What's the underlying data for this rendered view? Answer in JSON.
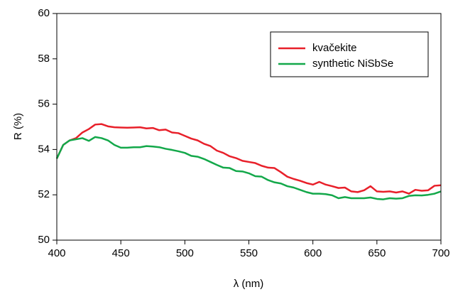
{
  "chart_data": {
    "type": "line",
    "x_label": "λ (nm)",
    "y_label": "R (%)",
    "x": [
      400,
      405,
      410,
      415,
      420,
      425,
      430,
      435,
      440,
      445,
      450,
      455,
      460,
      465,
      470,
      475,
      480,
      485,
      490,
      495,
      500,
      505,
      510,
      515,
      520,
      525,
      530,
      535,
      540,
      545,
      550,
      555,
      560,
      565,
      570,
      575,
      580,
      585,
      590,
      595,
      600,
      605,
      610,
      615,
      620,
      625,
      630,
      635,
      640,
      645,
      650,
      655,
      660,
      665,
      670,
      675,
      680,
      685,
      690,
      695,
      700
    ],
    "series": [
      {
        "name": "kvačekite",
        "color": "#e8202a",
        "values": [
          53.6,
          54.2,
          54.4,
          54.5,
          54.75,
          54.9,
          55.1,
          55.12,
          55.02,
          54.98,
          54.97,
          54.96,
          54.97,
          54.98,
          54.93,
          54.95,
          54.85,
          54.88,
          54.75,
          54.72,
          54.6,
          54.48,
          54.4,
          54.25,
          54.15,
          53.95,
          53.85,
          53.7,
          53.62,
          53.5,
          53.45,
          53.4,
          53.28,
          53.2,
          53.18,
          53.0,
          52.8,
          52.7,
          52.62,
          52.52,
          52.45,
          52.57,
          52.45,
          52.38,
          52.3,
          52.32,
          52.15,
          52.12,
          52.2,
          52.38,
          52.15,
          52.13,
          52.15,
          52.1,
          52.15,
          52.05,
          52.22,
          52.18,
          52.2,
          52.4,
          52.42
        ]
      },
      {
        "name": "synthetic NiSbSe",
        "color": "#13a84a",
        "values": [
          53.6,
          54.2,
          54.4,
          54.45,
          54.5,
          54.38,
          54.55,
          54.5,
          54.4,
          54.2,
          54.08,
          54.08,
          54.1,
          54.1,
          54.15,
          54.13,
          54.1,
          54.03,
          53.98,
          53.92,
          53.85,
          53.72,
          53.68,
          53.58,
          53.45,
          53.32,
          53.2,
          53.18,
          53.05,
          53.03,
          52.95,
          52.82,
          52.8,
          52.65,
          52.55,
          52.5,
          52.38,
          52.32,
          52.22,
          52.12,
          52.05,
          52.05,
          52.03,
          51.98,
          51.85,
          51.9,
          51.85,
          51.85,
          51.85,
          51.88,
          51.82,
          51.8,
          51.85,
          51.83,
          51.85,
          51.95,
          51.98,
          51.97,
          52.0,
          52.05,
          52.15
        ]
      }
    ],
    "xlim": [
      400,
      700
    ],
    "xticks": [
      400,
      450,
      500,
      550,
      600,
      650,
      700
    ],
    "ylim": [
      50,
      60
    ],
    "yticks": [
      50,
      52,
      54,
      56,
      58,
      60
    ]
  }
}
